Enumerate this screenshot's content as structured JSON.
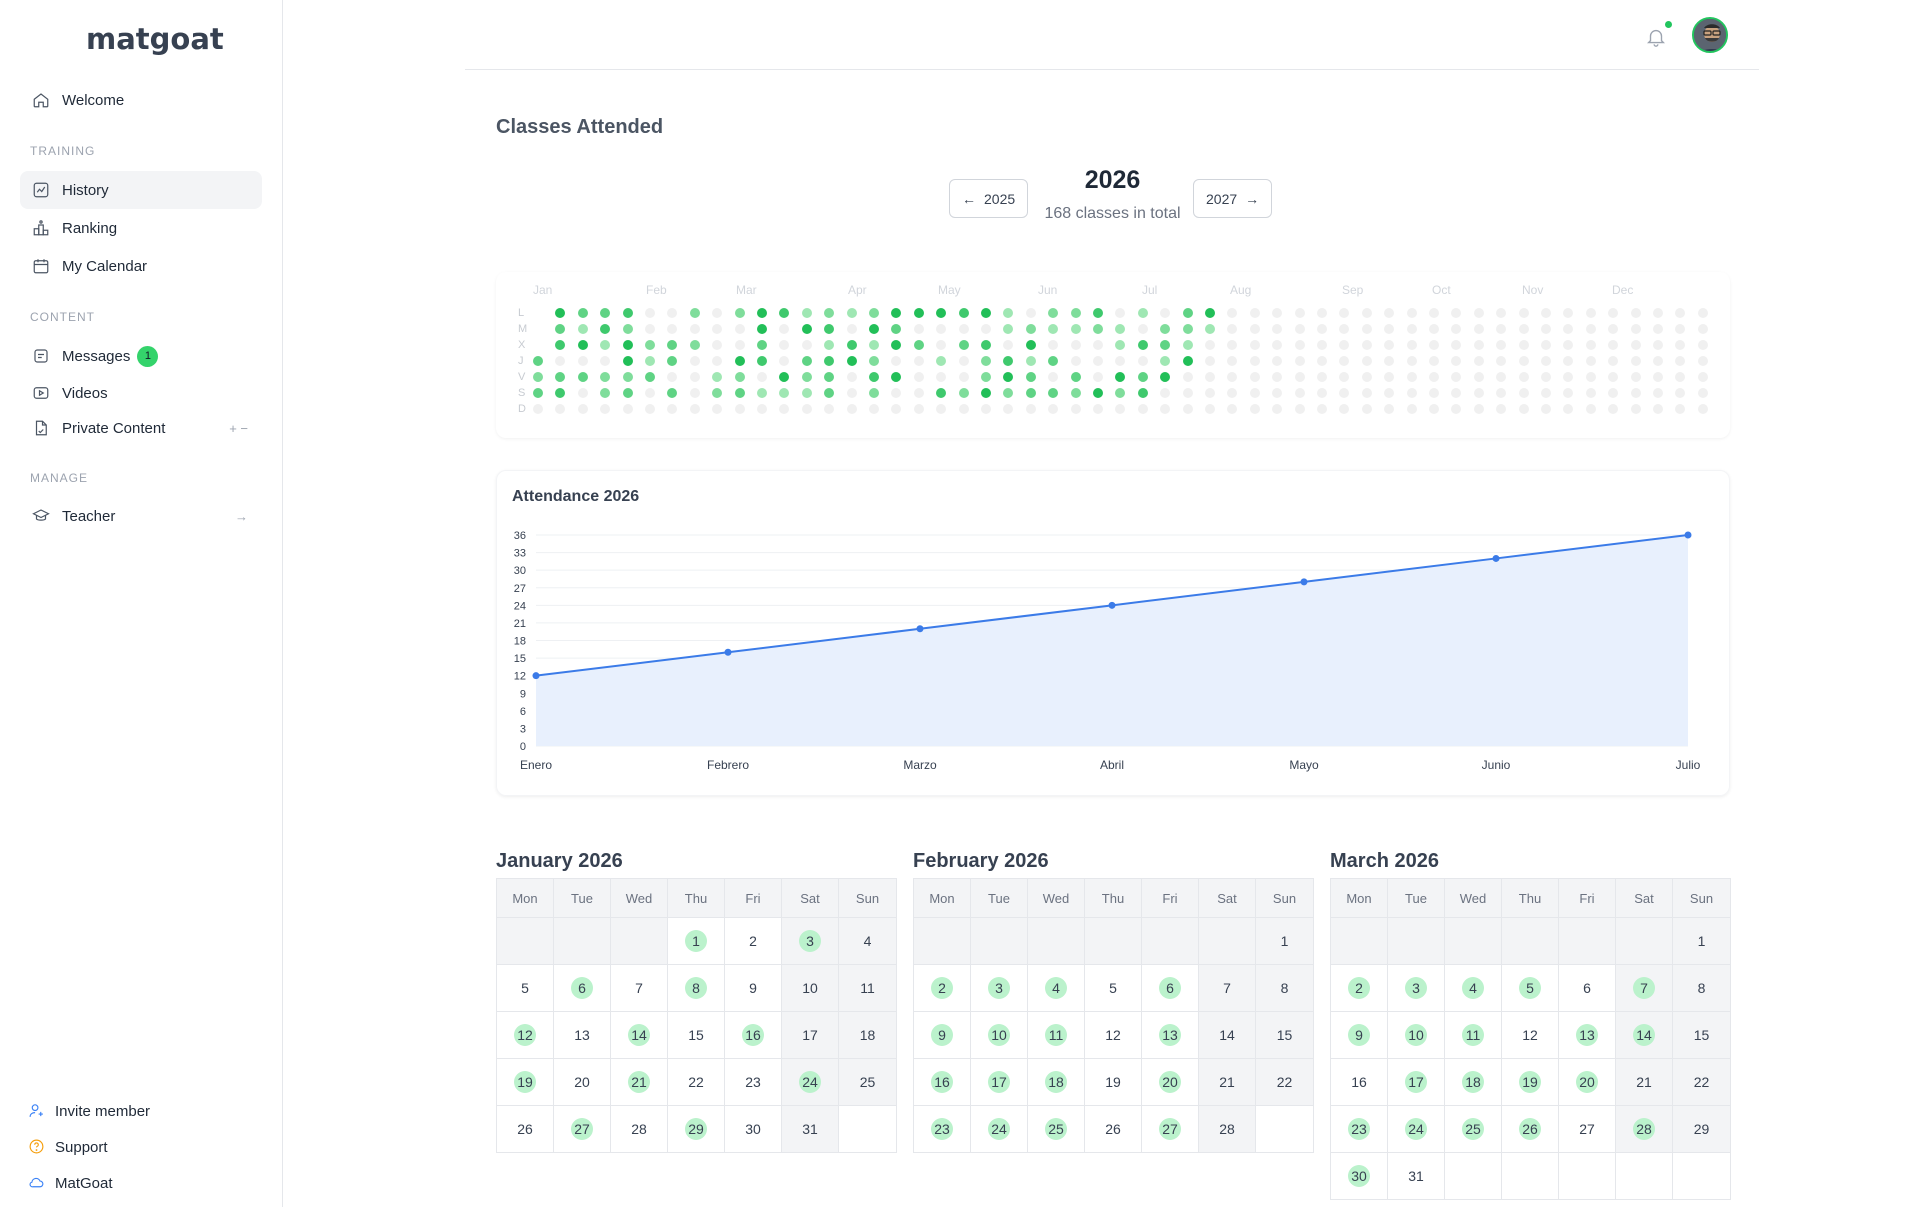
{
  "brand": {
    "name": "matgoat"
  },
  "sidebar": {
    "welcome": "Welcome",
    "section_training": "TRAINING",
    "history": "History",
    "ranking": "Ranking",
    "calendar": "My Calendar",
    "section_content": "CONTENT",
    "messages": "Messages",
    "messages_badge": "1",
    "videos": "Videos",
    "private": "Private Content",
    "private_ctl": "+ −",
    "section_manage": "MANAGE",
    "teacher": "Teacher",
    "teacher_arrow": "→",
    "invite": "Invite member",
    "support": "Support",
    "matgoat": "MatGoat"
  },
  "page": {
    "title": "Classes Attended",
    "prev_year": "2025",
    "next_year": "2027",
    "year": "2026",
    "subtitle": "168 classes in total"
  },
  "heatmap": {
    "months": [
      "Jan",
      "Feb",
      "Mar",
      "Apr",
      "May",
      "Jun",
      "Jul",
      "Aug",
      "Sep",
      "Oct",
      "Nov",
      "Dec"
    ],
    "days": [
      "L",
      "M",
      "X",
      "J",
      "V",
      "S",
      "D"
    ]
  },
  "chart_data": {
    "type": "area",
    "title": "Attendance 2026",
    "categories": [
      "Enero",
      "Febrero",
      "Marzo",
      "Abril",
      "Mayo",
      "Junio",
      "Julio"
    ],
    "values": [
      12,
      16,
      20,
      24,
      28,
      32,
      36
    ],
    "yticks": [
      0,
      3,
      6,
      9,
      12,
      15,
      18,
      21,
      24,
      27,
      30,
      33,
      36
    ],
    "ylim": [
      0,
      36
    ],
    "color": "#3b7be8",
    "fill": "#e8f0fd"
  },
  "calendars": [
    {
      "title": "January 2026",
      "start": 3,
      "days": 31,
      "attended": [
        1,
        3,
        6,
        8,
        12,
        14,
        16,
        19,
        21,
        24,
        27,
        29
      ]
    },
    {
      "title": "February 2026",
      "start": 6,
      "days": 28,
      "attended": [
        2,
        3,
        4,
        6,
        9,
        10,
        11,
        13,
        16,
        17,
        18,
        20,
        23,
        24,
        25,
        27
      ]
    },
    {
      "title": "March 2026",
      "start": 6,
      "days": 31,
      "attended": [
        2,
        3,
        4,
        5,
        7,
        9,
        10,
        11,
        13,
        14,
        17,
        18,
        19,
        20,
        23,
        24,
        25,
        26,
        28,
        30
      ]
    }
  ],
  "weekdays": [
    "Mon",
    "Tue",
    "Wed",
    "Thu",
    "Fri",
    "Sat",
    "Sun"
  ]
}
